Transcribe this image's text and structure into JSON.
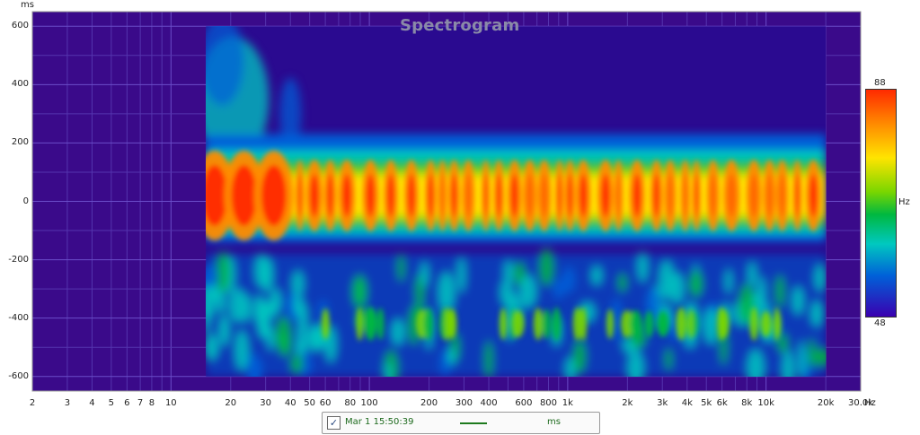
{
  "chart_data": {
    "type": "heatmap",
    "title": "Spectrogram",
    "xlabel": "",
    "ylabel": "",
    "x_unit": "Hz",
    "y_unit": "ms",
    "x_scale": "log",
    "xlim": [
      2,
      30000
    ],
    "ylim": [
      -650,
      650
    ],
    "data_x_range": [
      15,
      20000
    ],
    "data_y_range": [
      -600,
      600
    ],
    "x_ticks": [
      {
        "value": 2,
        "label": "2"
      },
      {
        "value": 3,
        "label": "3"
      },
      {
        "value": 4,
        "label": "4"
      },
      {
        "value": 5,
        "label": "5"
      },
      {
        "value": 6,
        "label": "6"
      },
      {
        "value": 7,
        "label": "7"
      },
      {
        "value": 8,
        "label": "8"
      },
      {
        "value": 10,
        "label": "10"
      },
      {
        "value": 20,
        "label": "20"
      },
      {
        "value": 30,
        "label": "30"
      },
      {
        "value": 40,
        "label": "40"
      },
      {
        "value": 50,
        "label": "50"
      },
      {
        "value": 60,
        "label": "60"
      },
      {
        "value": 80,
        "label": "80"
      },
      {
        "value": 100,
        "label": "100"
      },
      {
        "value": 200,
        "label": "200"
      },
      {
        "value": 300,
        "label": "300"
      },
      {
        "value": 400,
        "label": "400"
      },
      {
        "value": 600,
        "label": "600"
      },
      {
        "value": 800,
        "label": "800"
      },
      {
        "value": 1000,
        "label": "1k"
      },
      {
        "value": 2000,
        "label": "2k"
      },
      {
        "value": 3000,
        "label": "3k"
      },
      {
        "value": 4000,
        "label": "4k"
      },
      {
        "value": 5000,
        "label": "5k"
      },
      {
        "value": 6000,
        "label": "6k"
      },
      {
        "value": 8000,
        "label": "8k"
      },
      {
        "value": 10000,
        "label": "10k"
      },
      {
        "value": 20000,
        "label": "20k"
      },
      {
        "value": 30000,
        "label": "30.0k"
      }
    ],
    "y_ticks": [
      {
        "value": 600,
        "label": "600"
      },
      {
        "value": 400,
        "label": "400"
      },
      {
        "value": 200,
        "label": "200"
      },
      {
        "value": 0,
        "label": "0"
      },
      {
        "value": -200,
        "label": "-200"
      },
      {
        "value": -400,
        "label": "-400"
      },
      {
        "value": -600,
        "label": "-600"
      }
    ],
    "color_scale": {
      "max": 88,
      "min": 48,
      "unit": "Hz",
      "colors": [
        "#3a00b0",
        "#0060d8",
        "#00c8c0",
        "#00b840",
        "#7ad600",
        "#ffe400",
        "#ff8a00",
        "#ff2a00"
      ]
    },
    "background_color": "#3a0a8a",
    "grid": true,
    "legend": {
      "position": "bottom-center",
      "checked": true,
      "name": "Mar 1 15:50:39",
      "unit": "ms"
    }
  }
}
